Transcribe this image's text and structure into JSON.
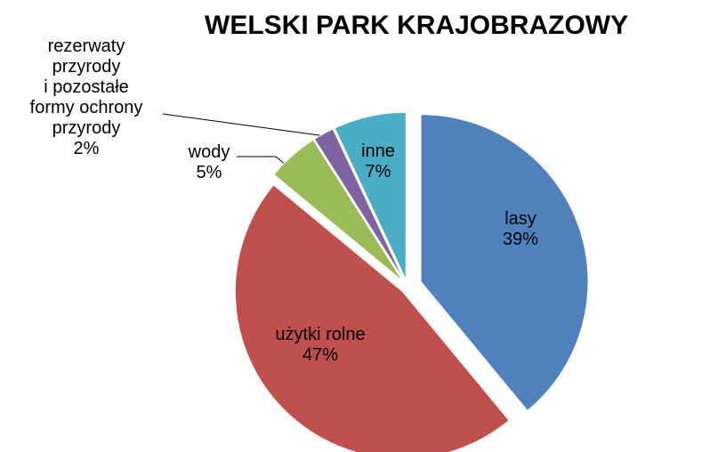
{
  "chart_data": {
    "type": "pie",
    "title": "WELSKI PARK KRAJOBRAZOWY",
    "categories": [
      "lasy",
      "użytki rolne",
      "wody",
      "rezerwaty\nprzyrody\ni pozostałe\nformy ochrony\nprzyrody",
      "inne"
    ],
    "values": [
      39,
      47,
      5,
      2,
      7
    ],
    "value_labels": [
      "39%",
      "47%",
      "5%",
      "2%",
      "7%"
    ],
    "colors": [
      "#4f81bd",
      "#c0504d",
      "#9bbb59",
      "#8064a2",
      "#4bacc6"
    ]
  }
}
